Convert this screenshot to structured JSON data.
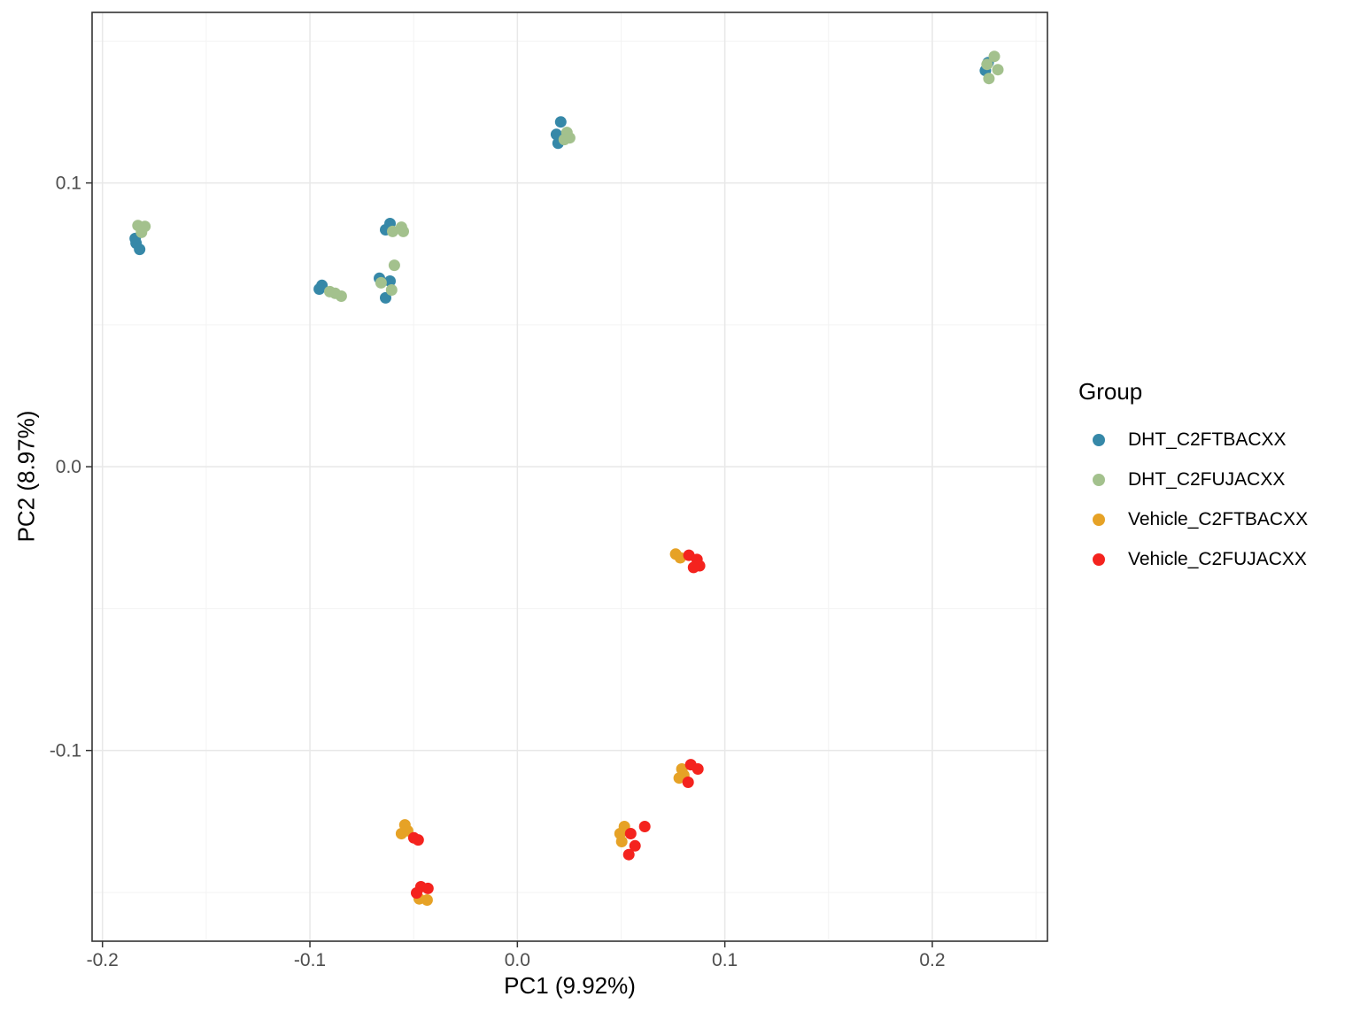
{
  "chart_data": {
    "type": "scatter",
    "xlabel": "PC1 (9.92%)",
    "ylabel": "PC2 (8.97%)",
    "legend_title": "Group",
    "legend_position": "right",
    "grid": true,
    "xlim": [
      -0.205,
      0.2555
    ],
    "ylim": [
      -0.1672,
      0.1601
    ],
    "x_ticks": [
      -0.2,
      -0.1,
      0.0,
      0.1,
      0.2
    ],
    "x_tick_labels": [
      "-0.2",
      "-0.1",
      "0.0",
      "0.1",
      "0.2"
    ],
    "y_ticks": [
      -0.1,
      0.0,
      0.1
    ],
    "y_tick_labels": [
      "-0.1",
      "0.0",
      "0.1"
    ],
    "minor_grid_step": 0.05,
    "colors": {
      "major_grid": "#e8e8e8",
      "minor_grid": "#f3f3f3",
      "panel_border": "#333333",
      "tick": "#333333",
      "tick_label": "#4d4d4d"
    },
    "series": [
      {
        "name": "DHT_C2FTBACXX",
        "color": "#3688a8",
        "points": [
          [
            0.2256,
            0.1396
          ],
          [
            0.2269,
            0.1424
          ],
          [
            0.0209,
            0.1215
          ],
          [
            0.0188,
            0.1171
          ],
          [
            0.0196,
            0.114
          ],
          [
            -0.1838,
            0.0788
          ],
          [
            -0.1821,
            0.0766
          ],
          [
            -0.1842,
            0.0804
          ],
          [
            -0.0614,
            0.0857
          ],
          [
            -0.0635,
            0.0835
          ],
          [
            -0.0665,
            0.0664
          ],
          [
            -0.0614,
            0.0654
          ],
          [
            -0.0635,
            0.0595
          ],
          [
            -0.0942,
            0.0639
          ],
          [
            -0.0955,
            0.0626
          ]
        ]
      },
      {
        "name": "DHT_C2FUJACXX",
        "color": "#a3c18d",
        "points": [
          [
            0.2299,
            0.1446
          ],
          [
            0.2264,
            0.1418
          ],
          [
            0.2316,
            0.1399
          ],
          [
            0.2273,
            0.1368
          ],
          [
            0.0239,
            0.1178
          ],
          [
            0.0252,
            0.1159
          ],
          [
            0.0226,
            0.1153
          ],
          [
            -0.1829,
            0.085
          ],
          [
            -0.1795,
            0.0847
          ],
          [
            -0.1812,
            0.0826
          ],
          [
            -0.0601,
            0.0829
          ],
          [
            -0.0559,
            0.0844
          ],
          [
            -0.055,
            0.0829
          ],
          [
            -0.0593,
            0.071
          ],
          [
            -0.0657,
            0.0648
          ],
          [
            -0.0606,
            0.0623
          ],
          [
            -0.0904,
            0.0617
          ],
          [
            -0.0849,
            0.0601
          ],
          [
            -0.0878,
            0.0611
          ]
        ]
      },
      {
        "name": "Vehicle_C2FTBACXX",
        "color": "#e6a226",
        "points": [
          [
            0.0763,
            -0.0308
          ],
          [
            0.0785,
            -0.0321
          ],
          [
            0.0793,
            -0.1065
          ],
          [
            0.0802,
            -0.1087
          ],
          [
            0.078,
            -0.1097
          ],
          [
            -0.0542,
            -0.1262
          ],
          [
            -0.0529,
            -0.1283
          ],
          [
            -0.0559,
            -0.1293
          ],
          [
            -0.0473,
            -0.1523
          ],
          [
            -0.0435,
            -0.1527
          ],
          [
            0.0516,
            -0.1268
          ],
          [
            0.0495,
            -0.1293
          ],
          [
            0.0503,
            -0.1321
          ]
        ]
      },
      {
        "name": "Vehicle_C2FUJACXX",
        "color": "#f4231e",
        "points": [
          [
            0.0827,
            -0.0312
          ],
          [
            0.0866,
            -0.0327
          ],
          [
            0.0878,
            -0.0349
          ],
          [
            0.0849,
            -0.0355
          ],
          [
            0.0836,
            -0.105
          ],
          [
            0.087,
            -0.1065
          ],
          [
            0.0823,
            -0.1112
          ],
          [
            -0.0499,
            -0.1308
          ],
          [
            -0.0478,
            -0.1315
          ],
          [
            -0.0465,
            -0.148
          ],
          [
            -0.0431,
            -0.1486
          ],
          [
            -0.0486,
            -0.1502
          ],
          [
            0.0546,
            -0.1293
          ],
          [
            0.0614,
            -0.1268
          ],
          [
            0.0567,
            -0.1336
          ],
          [
            0.0537,
            -0.1367
          ]
        ]
      }
    ]
  }
}
